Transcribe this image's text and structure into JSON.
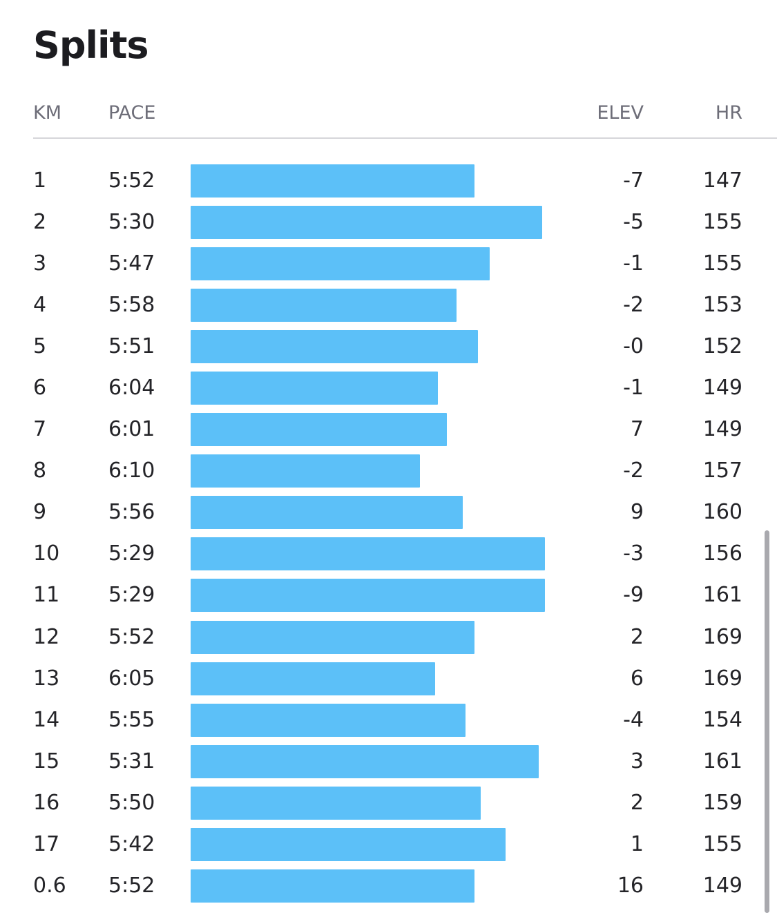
{
  "title": "Splits",
  "columns": {
    "km": "KM",
    "pace": "PACE",
    "elev": "ELEV",
    "hr": "HR"
  },
  "colors": {
    "bar": "#5cc0f8",
    "text": "#242428",
    "header_text": "#6d6d78",
    "divider": "#d6d6da"
  },
  "pace_scale": {
    "slowest_pace_seconds_at_zero": 445,
    "fastest_pace_seconds_at_full": 329
  },
  "splits": [
    {
      "km": "1",
      "pace": "5:52",
      "pace_seconds": 352,
      "elev": "-7",
      "hr": "147"
    },
    {
      "km": "2",
      "pace": "5:30",
      "pace_seconds": 330,
      "elev": "-5",
      "hr": "155"
    },
    {
      "km": "3",
      "pace": "5:47",
      "pace_seconds": 347,
      "elev": "-1",
      "hr": "155"
    },
    {
      "km": "4",
      "pace": "5:58",
      "pace_seconds": 358,
      "elev": "-2",
      "hr": "153"
    },
    {
      "km": "5",
      "pace": "5:51",
      "pace_seconds": 351,
      "elev": "-0",
      "hr": "152"
    },
    {
      "km": "6",
      "pace": "6:04",
      "pace_seconds": 364,
      "elev": "-1",
      "hr": "149"
    },
    {
      "km": "7",
      "pace": "6:01",
      "pace_seconds": 361,
      "elev": "7",
      "hr": "149"
    },
    {
      "km": "8",
      "pace": "6:10",
      "pace_seconds": 370,
      "elev": "-2",
      "hr": "157"
    },
    {
      "km": "9",
      "pace": "5:56",
      "pace_seconds": 356,
      "elev": "9",
      "hr": "160"
    },
    {
      "km": "10",
      "pace": "5:29",
      "pace_seconds": 329,
      "elev": "-3",
      "hr": "156"
    },
    {
      "km": "11",
      "pace": "5:29",
      "pace_seconds": 329,
      "elev": "-9",
      "hr": "161"
    },
    {
      "km": "12",
      "pace": "5:52",
      "pace_seconds": 352,
      "elev": "2",
      "hr": "169"
    },
    {
      "km": "13",
      "pace": "6:05",
      "pace_seconds": 365,
      "elev": "6",
      "hr": "169"
    },
    {
      "km": "14",
      "pace": "5:55",
      "pace_seconds": 355,
      "elev": "-4",
      "hr": "154"
    },
    {
      "km": "15",
      "pace": "5:31",
      "pace_seconds": 331,
      "elev": "3",
      "hr": "161"
    },
    {
      "km": "16",
      "pace": "5:50",
      "pace_seconds": 350,
      "elev": "2",
      "hr": "159"
    },
    {
      "km": "17",
      "pace": "5:42",
      "pace_seconds": 342,
      "elev": "1",
      "hr": "155"
    },
    {
      "km": "0.6",
      "pace": "5:52",
      "pace_seconds": 352,
      "elev": "16",
      "hr": "149"
    }
  ]
}
